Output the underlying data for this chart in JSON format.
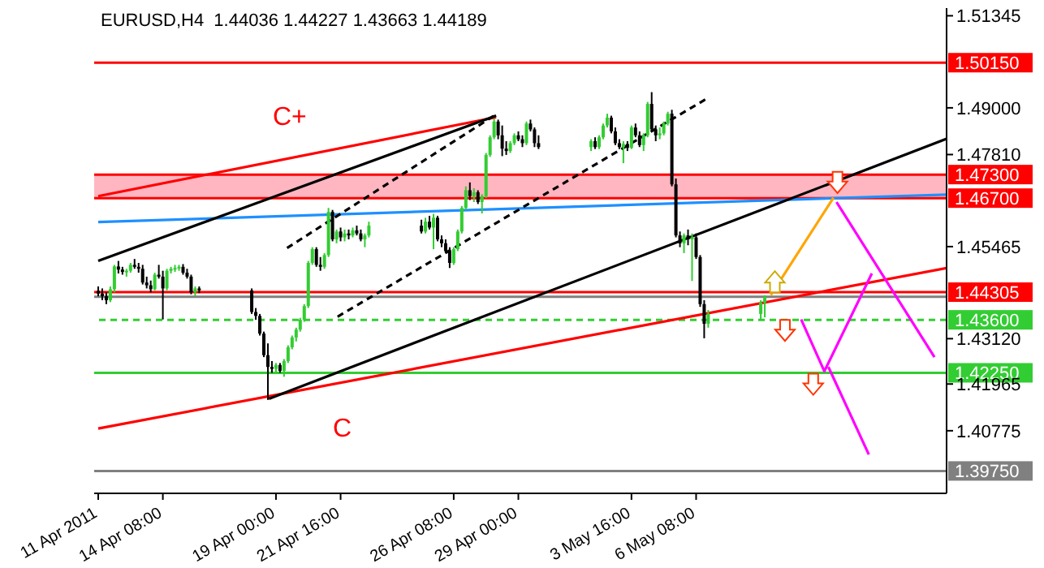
{
  "chart_data": {
    "type": "candlestick",
    "title": "EURUSD,H4  1.44036 1.44227 1.43663 1.44189",
    "x": [
      "2011-04-11T16:00",
      "2011-04-11T20:00",
      "2011-04-12T00:00",
      "2011-04-12T04:00",
      "2011-04-12T08:00",
      "2011-04-12T12:00",
      "2011-04-12T16:00",
      "2011-04-12T20:00",
      "2011-04-13T00:00",
      "2011-04-13T04:00",
      "2011-04-13T08:00",
      "2011-04-13T12:00",
      "2011-04-13T16:00",
      "2011-04-13T20:00",
      "2011-04-14T00:00",
      "2011-04-14T04:00",
      "2011-04-14T08:00",
      "2011-04-14T12:00",
      "2011-04-14T16:00",
      "2011-04-14T20:00",
      "2011-04-15T00:00",
      "2011-04-15T04:00",
      "2011-04-15T08:00",
      "2011-04-15T12:00",
      "2011-04-15T16:00",
      "2011-04-15T20:00",
      "2011-04-18T00:00",
      "2011-04-18T04:00",
      "2011-04-18T08:00",
      "2011-04-18T12:00",
      "2011-04-18T16:00",
      "2011-04-18T20:00",
      "2011-04-19T00:00",
      "2011-04-19T04:00",
      "2011-04-19T08:00",
      "2011-04-19T12:00",
      "2011-04-19T16:00",
      "2011-04-19T20:00",
      "2011-04-20T00:00",
      "2011-04-20T04:00",
      "2011-04-20T08:00",
      "2011-04-20T12:00",
      "2011-04-20T16:00",
      "2011-04-20T20:00",
      "2011-04-21T00:00",
      "2011-04-21T04:00",
      "2011-04-21T08:00",
      "2011-04-21T12:00",
      "2011-04-21T16:00",
      "2011-04-21T20:00",
      "2011-04-22T00:00",
      "2011-04-22T04:00",
      "2011-04-22T08:00",
      "2011-04-22T12:00",
      "2011-04-22T16:00",
      "2011-04-22T20:00",
      "2011-04-25T00:00",
      "2011-04-25T04:00",
      "2011-04-25T08:00",
      "2011-04-25T12:00",
      "2011-04-25T16:00",
      "2011-04-25T20:00",
      "2011-04-26T00:00",
      "2011-04-26T04:00",
      "2011-04-26T08:00",
      "2011-04-26T12:00",
      "2011-04-26T16:00",
      "2011-04-26T20:00",
      "2011-04-27T00:00",
      "2011-04-27T04:00",
      "2011-04-27T08:00",
      "2011-04-27T12:00",
      "2011-04-27T16:00",
      "2011-04-27T20:00",
      "2011-04-28T00:00",
      "2011-04-28T04:00",
      "2011-04-28T08:00",
      "2011-04-28T12:00",
      "2011-04-28T16:00",
      "2011-04-28T20:00",
      "2011-04-29T00:00",
      "2011-04-29T04:00",
      "2011-04-29T08:00",
      "2011-04-29T12:00",
      "2011-04-29T16:00",
      "2011-04-29T20:00",
      "2011-05-02T00:00",
      "2011-05-02T04:00",
      "2011-05-02T08:00",
      "2011-05-02T12:00",
      "2011-05-02T16:00",
      "2011-05-02T20:00",
      "2011-05-03T00:00",
      "2011-05-03T04:00",
      "2011-05-03T08:00",
      "2011-05-03T12:00",
      "2011-05-03T16:00",
      "2011-05-03T20:00",
      "2011-05-04T00:00",
      "2011-05-04T04:00",
      "2011-05-04T08:00",
      "2011-05-04T12:00",
      "2011-05-04T16:00",
      "2011-05-04T20:00",
      "2011-05-05T00:00",
      "2011-05-05T04:00",
      "2011-05-05T08:00",
      "2011-05-05T12:00",
      "2011-05-05T16:00",
      "2011-05-05T20:00",
      "2011-05-06T00:00",
      "2011-05-06T04:00",
      "2011-05-06T08:00",
      "2011-05-06T12:00",
      "2011-05-06T16:00",
      "2011-05-06T20:00",
      "2011-05-09T00:00",
      "2011-05-09T04:00"
    ],
    "ohlc": [
      [
        1.4434,
        1.4445,
        1.442,
        1.4427
      ],
      [
        1.4427,
        1.444,
        1.441,
        1.442
      ],
      [
        1.442,
        1.443,
        1.44,
        1.441
      ],
      [
        1.441,
        1.4445,
        1.4405,
        1.4438
      ],
      [
        1.4438,
        1.45,
        1.443,
        1.4496
      ],
      [
        1.4496,
        1.451,
        1.4478,
        1.4488
      ],
      [
        1.4488,
        1.4495,
        1.4475,
        1.4482
      ],
      [
        1.4482,
        1.449,
        1.447,
        1.4485
      ],
      [
        1.4485,
        1.4505,
        1.448,
        1.45
      ],
      [
        1.45,
        1.4515,
        1.449,
        1.4495
      ],
      [
        1.4495,
        1.4505,
        1.448,
        1.449
      ],
      [
        1.449,
        1.45,
        1.445,
        1.4455
      ],
      [
        1.4455,
        1.447,
        1.444,
        1.4448
      ],
      [
        1.4448,
        1.446,
        1.443,
        1.4438
      ],
      [
        1.4438,
        1.448,
        1.4435,
        1.4475
      ],
      [
        1.4475,
        1.45,
        1.4465,
        1.447
      ],
      [
        1.447,
        1.4485,
        1.4361,
        1.444
      ],
      [
        1.444,
        1.449,
        1.4435,
        1.4485
      ],
      [
        1.4485,
        1.4495,
        1.4478,
        1.449
      ],
      [
        1.449,
        1.45,
        1.4482,
        1.4492
      ],
      [
        1.4492,
        1.45,
        1.4485,
        1.4495
      ],
      [
        1.4495,
        1.4502,
        1.4475,
        1.448
      ],
      [
        1.448,
        1.449,
        1.4465,
        1.447
      ],
      [
        1.447,
        1.4475,
        1.4425,
        1.443
      ],
      [
        1.443,
        1.4445,
        1.442,
        1.444
      ],
      [
        1.444,
        1.4445,
        1.4428,
        1.4435
      ],
      [
        1.4435,
        1.444,
        1.4375,
        1.438
      ],
      [
        1.438,
        1.439,
        1.436,
        1.437
      ],
      [
        1.437,
        1.4375,
        1.432,
        1.4325
      ],
      [
        1.4325,
        1.433,
        1.4265,
        1.427
      ],
      [
        1.427,
        1.43,
        1.4156,
        1.424
      ],
      [
        1.424,
        1.4255,
        1.4225,
        1.4235
      ],
      [
        1.4235,
        1.425,
        1.4222,
        1.4245
      ],
      [
        1.4245,
        1.425,
        1.4225,
        1.423
      ],
      [
        1.423,
        1.426,
        1.4215,
        1.4255
      ],
      [
        1.4255,
        1.4295,
        1.425,
        1.429
      ],
      [
        1.429,
        1.432,
        1.4285,
        1.4315
      ],
      [
        1.4315,
        1.434,
        1.4305,
        1.4335
      ],
      [
        1.4335,
        1.4365,
        1.433,
        1.436
      ],
      [
        1.436,
        1.44,
        1.4355,
        1.4395
      ],
      [
        1.4395,
        1.451,
        1.439,
        1.4505
      ],
      [
        1.4505,
        1.4545,
        1.45,
        1.454
      ],
      [
        1.454,
        1.4545,
        1.4495,
        1.45
      ],
      [
        1.45,
        1.452,
        1.4485,
        1.4495
      ],
      [
        1.4495,
        1.453,
        1.449,
        1.4525
      ],
      [
        1.4525,
        1.4645,
        1.452,
        1.4635
      ],
      [
        1.4635,
        1.464,
        1.456,
        1.4565
      ],
      [
        1.4565,
        1.459,
        1.4555,
        1.4585
      ],
      [
        1.4585,
        1.4595,
        1.456,
        1.457
      ],
      [
        1.457,
        1.459,
        1.456,
        1.458
      ],
      [
        1.458,
        1.459,
        1.4565,
        1.4575
      ],
      [
        1.4575,
        1.4595,
        1.457,
        1.4588
      ],
      [
        1.4588,
        1.46,
        1.4575,
        1.458
      ],
      [
        1.458,
        1.459,
        1.456,
        1.4565
      ],
      [
        1.4565,
        1.458,
        1.4545,
        1.4575
      ],
      [
        1.4575,
        1.461,
        1.457,
        1.46
      ],
      [
        1.46,
        1.4615,
        1.458,
        1.4585
      ],
      [
        1.4585,
        1.462,
        1.458,
        1.461
      ],
      [
        1.461,
        1.4625,
        1.459,
        1.4595
      ],
      [
        1.4595,
        1.463,
        1.454,
        1.462
      ],
      [
        1.462,
        1.4625,
        1.456,
        1.4565
      ],
      [
        1.4565,
        1.4575,
        1.4545,
        1.4555
      ],
      [
        1.4555,
        1.4565,
        1.453,
        1.4535
      ],
      [
        1.4535,
        1.4545,
        1.4492,
        1.4505
      ],
      [
        1.4505,
        1.4545,
        1.45,
        1.454
      ],
      [
        1.454,
        1.459,
        1.4535,
        1.4585
      ],
      [
        1.4585,
        1.465,
        1.458,
        1.4645
      ],
      [
        1.4645,
        1.47,
        1.464,
        1.469
      ],
      [
        1.469,
        1.471,
        1.4665,
        1.4675
      ],
      [
        1.4675,
        1.4695,
        1.466,
        1.4685
      ],
      [
        1.4685,
        1.469,
        1.4655,
        1.466
      ],
      [
        1.466,
        1.468,
        1.4631,
        1.4675
      ],
      [
        1.4675,
        1.4785,
        1.467,
        1.478
      ],
      [
        1.478,
        1.483,
        1.4775,
        1.4825
      ],
      [
        1.4825,
        1.4872,
        1.482,
        1.4865
      ],
      [
        1.4865,
        1.487,
        1.482,
        1.483
      ],
      [
        1.483,
        1.4855,
        1.4777,
        1.4796
      ],
      [
        1.4796,
        1.4815,
        1.478,
        1.479
      ],
      [
        1.479,
        1.4815,
        1.4785,
        1.481
      ],
      [
        1.481,
        1.4835,
        1.4805,
        1.483
      ],
      [
        1.483,
        1.484,
        1.4815,
        1.482
      ],
      [
        1.482,
        1.483,
        1.48,
        1.481
      ],
      [
        1.481,
        1.4865,
        1.4805,
        1.486
      ],
      [
        1.486,
        1.487,
        1.484,
        1.4845
      ],
      [
        1.4845,
        1.485,
        1.48,
        1.481
      ],
      [
        1.481,
        1.483,
        1.4795,
        1.48
      ],
      [
        1.48,
        1.482,
        1.479,
        1.4815
      ],
      [
        1.4815,
        1.4825,
        1.4795,
        1.48
      ],
      [
        1.48,
        1.483,
        1.4795,
        1.4825
      ],
      [
        1.4825,
        1.486,
        1.482,
        1.4855
      ],
      [
        1.4855,
        1.4885,
        1.485,
        1.4875
      ],
      [
        1.4875,
        1.488,
        1.4835,
        1.484
      ],
      [
        1.484,
        1.485,
        1.4805,
        1.481
      ],
      [
        1.481,
        1.482,
        1.4795,
        1.48
      ],
      [
        1.48,
        1.4815,
        1.4759,
        1.4808
      ],
      [
        1.4808,
        1.4815,
        1.479,
        1.4798
      ],
      [
        1.4798,
        1.4855,
        1.4795,
        1.485
      ],
      [
        1.485,
        1.486,
        1.4825,
        1.483
      ],
      [
        1.483,
        1.484,
        1.48,
        1.4805
      ],
      [
        1.4805,
        1.4835,
        1.479,
        1.483
      ],
      [
        1.483,
        1.4915,
        1.4825,
        1.491
      ],
      [
        1.491,
        1.494,
        1.484,
        1.4845
      ],
      [
        1.4845,
        1.4855,
        1.4815,
        1.483
      ],
      [
        1.483,
        1.485,
        1.482,
        1.4835
      ],
      [
        1.4835,
        1.4865,
        1.483,
        1.486
      ],
      [
        1.486,
        1.489,
        1.4855,
        1.4885
      ],
      [
        1.4885,
        1.4895,
        1.47,
        1.4705
      ],
      [
        1.4705,
        1.472,
        1.457,
        1.4575
      ],
      [
        1.4575,
        1.4585,
        1.4545,
        1.4555
      ],
      [
        1.4555,
        1.458,
        1.453,
        1.4575
      ],
      [
        1.4575,
        1.459,
        1.455,
        1.4565
      ],
      [
        1.4565,
        1.458,
        1.4459,
        1.457
      ],
      [
        1.457,
        1.458,
        1.4515,
        1.452
      ],
      [
        1.452,
        1.4525,
        1.4393,
        1.44
      ],
      [
        1.44,
        1.441,
        1.4313,
        1.435
      ],
      [
        1.435,
        1.4385,
        1.434,
        1.4375
      ],
      [
        1.4375,
        1.441,
        1.436,
        1.4404
      ],
      [
        1.44036,
        1.44227,
        1.43663,
        1.44189
      ]
    ],
    "xlim": [
      "2011-04-11T12:00",
      "2011-05-16T16:00"
    ],
    "xticks": [
      {
        "value": "2011-04-11T16:00",
        "label": "11 Apr 2011"
      },
      {
        "value": "2011-04-14T08:00",
        "label": "14 Apr 08:00"
      },
      {
        "value": "2011-04-19T00:00",
        "label": "19 Apr 00:00"
      },
      {
        "value": "2011-04-21T16:00",
        "label": "21 Apr 16:00"
      },
      {
        "value": "2011-04-26T08:00",
        "label": "26 Apr 08:00"
      },
      {
        "value": "2011-04-29T00:00",
        "label": "29 Apr 00:00"
      },
      {
        "value": "2011-05-03T16:00",
        "label": "3 May 16:00"
      },
      {
        "value": "2011-05-06T08:00",
        "label": "6 May 08:00"
      }
    ],
    "ylim": [
      1.3918,
      1.5154
    ],
    "yticks": [
      1.51345,
      {
        "value": 1.49,
        "label": "1.49000"
      },
      {
        "value": 1.4781,
        "label": "1.47810"
      },
      1.45465,
      {
        "value": 1.4312,
        "label": "1.43120"
      },
      1.41965,
      1.40775
    ],
    "series": [
      {
        "type": "line",
        "x": [
          "2011-04-11T16:00",
          "2011-04-28T02:00"
        ],
        "values": [
          1.4675,
          1.4876
        ],
        "color": "#ff0000"
      },
      {
        "type": "line",
        "x": [
          "2011-04-11T16:00",
          "2011-05-16T16:00"
        ],
        "values": [
          1.4083,
          1.4492
        ],
        "color": "#ff0000"
      },
      {
        "type": "line",
        "x": [
          "2011-04-11T16:00",
          "2011-05-16T16:00"
        ],
        "values": [
          1.4609,
          1.4679
        ],
        "color": "#1e90ff"
      },
      {
        "type": "line",
        "x": [
          "2011-04-11T16:00",
          "2011-04-28T02:00"
        ],
        "values": [
          1.451,
          1.488
        ],
        "color": "#000000"
      },
      {
        "type": "line",
        "x": [
          "2011-04-18T17:00",
          "2011-05-16T16:00"
        ],
        "values": [
          1.4159,
          1.4821
        ],
        "color": "#000000"
      },
      {
        "type": "line",
        "x": [
          "2011-04-19T11:00",
          "2011-04-28T00:00"
        ],
        "values": [
          1.4543,
          1.488
        ],
        "color": "#000000",
        "line_style": "dashed"
      },
      {
        "type": "line",
        "x": [
          "2011-04-21T13:00",
          "2011-05-06T21:00"
        ],
        "values": [
          1.4368,
          1.4927
        ],
        "color": "#000000",
        "line_style": "dashed"
      },
      {
        "type": "line",
        "x": [
          "2011-05-09T10:00",
          "2011-05-12T00:00"
        ],
        "values": [
          1.4423,
          1.4671
        ],
        "color": "#ffa500"
      },
      {
        "type": "line",
        "x": [
          "2011-05-10T16:00",
          "2011-05-11T15:00",
          "2011-05-13T14:00"
        ],
        "values": [
          1.4361,
          1.4229,
          1.4478
        ],
        "color": "#ff00ff"
      },
      {
        "type": "line",
        "x": [
          "2011-05-11T19:00",
          "2011-05-13T11:00"
        ],
        "values": [
          1.424,
          1.4017
        ],
        "color": "#ff00ff"
      },
      {
        "type": "line",
        "x": [
          "2011-05-12T03:00",
          "2011-05-16T04:00"
        ],
        "values": [
          1.466,
          1.4265
        ],
        "color": "#ff00ff"
      }
    ],
    "ref_lines": [
      {
        "axis": "y",
        "value": 1.5015,
        "label": "1.50150",
        "color": "#ff0000"
      },
      {
        "axis": "y",
        "value": 1.473,
        "label": "1.47300",
        "color": "#ff0000"
      },
      {
        "axis": "y",
        "value": 1.467,
        "label": "1.46700",
        "color": "#ff0000"
      },
      {
        "axis": "y",
        "value": 1.44305,
        "label": "1.44305",
        "color": "#ff0000"
      },
      {
        "axis": "y",
        "value": 1.44189,
        "label": null,
        "color": "#808080"
      },
      {
        "axis": "y",
        "value": 1.436,
        "label": "1.43600",
        "color": "#32cd32",
        "line_style": "dashed"
      },
      {
        "axis": "y",
        "value": 1.4225,
        "label": "1.42250",
        "color": "#32cd32"
      },
      {
        "axis": "y",
        "value": 1.3975,
        "label": "1.39750",
        "color": "#808080"
      }
    ],
    "bands": [
      {
        "axis": "y",
        "from": 1.467,
        "to": 1.473,
        "color": "#ffb6c1"
      }
    ],
    "annotations": [
      "C+",
      "C"
    ]
  }
}
